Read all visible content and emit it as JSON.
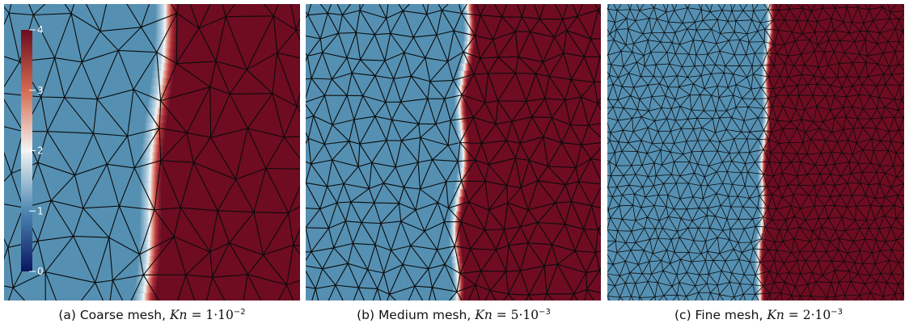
{
  "colorbar": {
    "ticks": [
      "4",
      "3",
      "2",
      "1",
      "0"
    ],
    "colors": {
      "low": "#0b1560",
      "mid_low": "#4d88b4",
      "mid": "#f4f4f2",
      "mid_high": "#d46a4f",
      "high": "#6b0c1f"
    }
  },
  "background_colors": {
    "left_state": "#5590b2",
    "right_state": "#6f0c21",
    "front_white": "#f4f6f8",
    "mesh_lines": "#0b0b0b"
  },
  "panels": [
    {
      "caption_prefix": "(a) Coarse mesh, ",
      "kn_symbol": "Kn",
      "kn_equals": " = 1·10",
      "kn_exponent": "−2"
    },
    {
      "caption_prefix": "(b) Medium mesh, ",
      "kn_symbol": "Kn",
      "kn_equals": " = 5·10",
      "kn_exponent": "−3"
    },
    {
      "caption_prefix": "(c) Fine mesh, ",
      "kn_symbol": "Kn",
      "kn_equals": " = 2·10",
      "kn_exponent": "−3"
    }
  ]
}
